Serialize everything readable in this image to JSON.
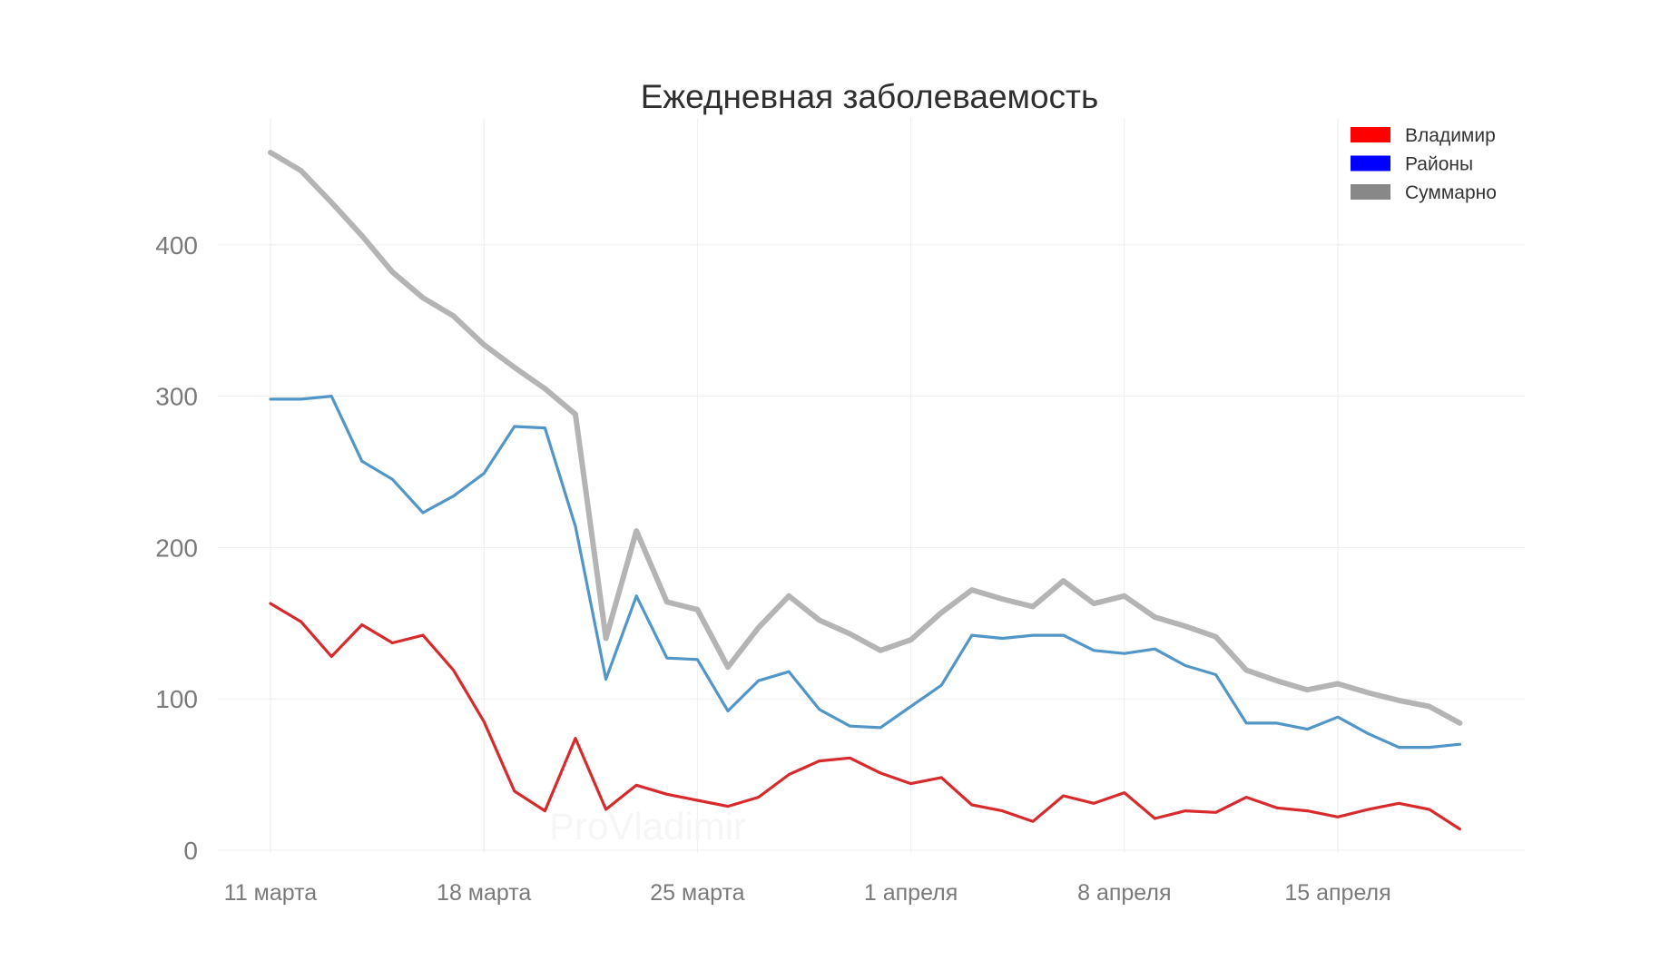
{
  "chart_data": {
    "type": "line",
    "title": "Ежедневная заболеваемость",
    "xlabel": "",
    "ylabel": "",
    "ylim": [
      0,
      465
    ],
    "yticks": [
      0,
      100,
      200,
      300,
      400
    ],
    "xtick_labels": [
      {
        "day_index": 0,
        "label": "11 марта"
      },
      {
        "day_index": 7,
        "label": "18 марта"
      },
      {
        "day_index": 14,
        "label": "25 марта"
      },
      {
        "day_index": 21,
        "label": "1 апреля"
      },
      {
        "day_index": 28,
        "label": "8 апреля"
      },
      {
        "day_index": 35,
        "label": "15 апреля"
      }
    ],
    "grid": true,
    "legend_position": "top-right",
    "x": [
      0,
      1,
      2,
      3,
      4,
      5,
      6,
      7,
      8,
      9,
      10,
      11,
      12,
      13,
      14,
      15,
      16,
      17,
      18,
      19,
      20,
      21,
      22,
      23,
      24,
      25,
      26,
      27,
      28,
      29,
      30,
      31,
      32,
      33,
      34,
      35,
      36,
      37,
      38,
      39
    ],
    "series": [
      {
        "name": "Суммарно",
        "legend_color": "#888888",
        "line_color": "#b4b4b4",
        "values": [
          461,
          449,
          428,
          406,
          382,
          365,
          353,
          334,
          319,
          305,
          288,
          140,
          211,
          164,
          159,
          121,
          147,
          168,
          152,
          143,
          132,
          139,
          157,
          172,
          166,
          161,
          178,
          163,
          168,
          154,
          148,
          141,
          119,
          112,
          106,
          110,
          104,
          99,
          95,
          84
        ]
      },
      {
        "name": "Районы",
        "legend_color": "#0000ff",
        "line_color": "#5196c6",
        "values": [
          298,
          298,
          300,
          257,
          245,
          223,
          234,
          249,
          280,
          279,
          214,
          113,
          168,
          127,
          126,
          92,
          112,
          118,
          93,
          82,
          81,
          95,
          109,
          142,
          140,
          142,
          142,
          132,
          130,
          133,
          122,
          116,
          84,
          84,
          80,
          88,
          77,
          68,
          68,
          70
        ]
      },
      {
        "name": "Владимир",
        "legend_color": "#ff0000",
        "line_color": "#d62a2d",
        "values": [
          163,
          151,
          128,
          149,
          137,
          142,
          119,
          85,
          39,
          26,
          74,
          27,
          43,
          37,
          33,
          29,
          35,
          50,
          59,
          61,
          51,
          44,
          48,
          30,
          26,
          19,
          36,
          31,
          38,
          21,
          26,
          25,
          35,
          28,
          26,
          22,
          27,
          31,
          27,
          14
        ]
      }
    ],
    "watermark": "ProVladimir"
  }
}
